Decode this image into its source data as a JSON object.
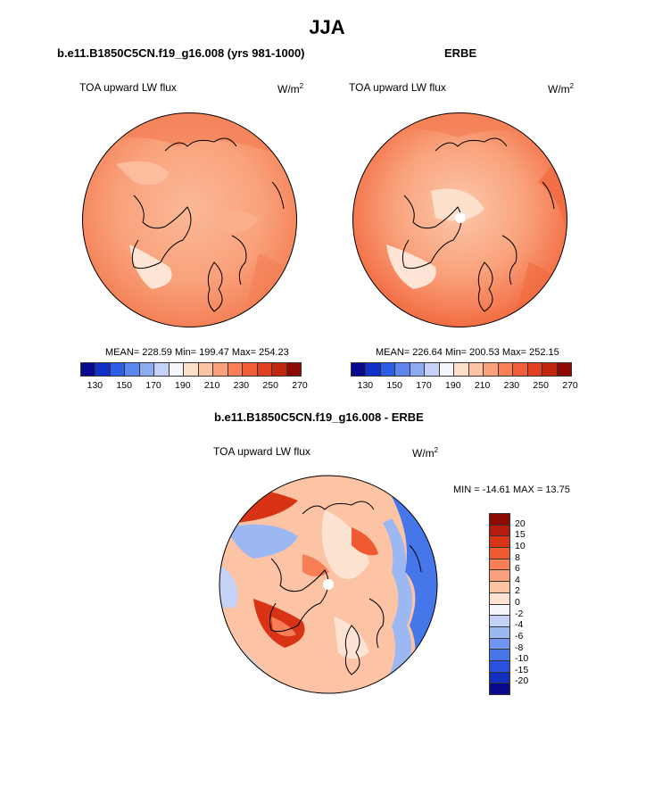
{
  "main_title": "JJA",
  "panel_left": {
    "title": "b.e11.B1850C5CN.f19_g16.008 (yrs 981-1000)",
    "variable": "TOA upward LW flux",
    "units_base": "W/m",
    "units_sup": "2",
    "stats": "MEAN= 228.59  Min= 199.47  Max= 254.23"
  },
  "panel_right": {
    "title": "ERBE",
    "variable": "TOA upward LW flux",
    "units_base": "W/m",
    "units_sup": "2",
    "stats": "MEAN= 226.64  Min= 200.53  Max= 252.15"
  },
  "panel_diff": {
    "title": "b.e11.B1850C5CN.f19_g16.008 - ERBE",
    "variable": "TOA upward LW flux",
    "units_base": "W/m",
    "units_sup": "2",
    "stats": "MIN = -14.61 MAX =  13.75"
  },
  "colorbar_abs": {
    "colors": [
      "#08088c",
      "#1030c8",
      "#2f5ee6",
      "#5b87ee",
      "#8eabf2",
      "#c3d2f6",
      "#f4f6fb",
      "#fde0cc",
      "#fcc3a4",
      "#fba07c",
      "#f97f58",
      "#f2603a",
      "#e0401d",
      "#c1260e",
      "#8e0a05"
    ],
    "tick_labels": [
      "130",
      "150",
      "170",
      "190",
      "210",
      "230",
      "250",
      "270"
    ]
  },
  "colorbar_diff": {
    "colors": [
      "#8e0a05",
      "#b81a0b",
      "#d83314",
      "#f05a32",
      "#f77e55",
      "#fba07c",
      "#fcc3a4",
      "#fde3d2",
      "#f4f6fb",
      "#c3d2f6",
      "#9cb8f3",
      "#6f95ef",
      "#4677ea",
      "#2a52de",
      "#1230c0",
      "#08088c"
    ],
    "tick_labels": [
      "20",
      "15",
      "10",
      "8",
      "6",
      "4",
      "2",
      "0",
      "-2",
      "-4",
      "-6",
      "-8",
      "-10",
      "-15",
      "-20"
    ]
  }
}
